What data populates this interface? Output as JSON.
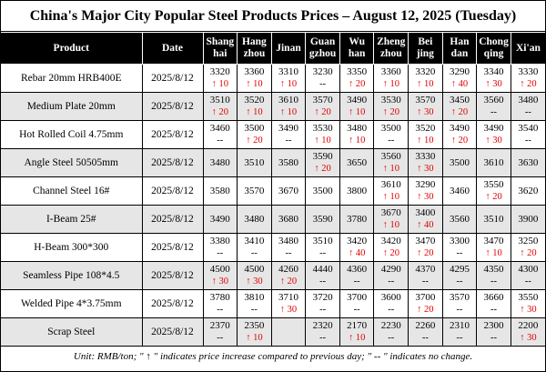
{
  "title": "China's Major City Popular Steel Products Prices – August 12, 2025 (Tuesday)",
  "headers": {
    "product": "Product",
    "date": "Date",
    "cities": [
      [
        "Shang",
        "hai"
      ],
      [
        "Hang",
        "zhou"
      ],
      [
        "Jinan",
        ""
      ],
      [
        "Guan",
        "gzhou"
      ],
      [
        "Wu",
        "han"
      ],
      [
        "Zheng",
        "zhou"
      ],
      [
        "Bei",
        "jing"
      ],
      [
        "Han",
        "dan"
      ],
      [
        "Chong",
        "qing"
      ],
      [
        "Xi'an",
        ""
      ]
    ]
  },
  "rows": [
    {
      "product": "Rebar 20mm HRB400E",
      "date": "2025/8/12",
      "cells": [
        {
          "price": "3320",
          "change": "↑ 10"
        },
        {
          "price": "3360",
          "change": "↑ 10"
        },
        {
          "price": "3310",
          "change": "↑ 10"
        },
        {
          "price": "3230",
          "change": "--"
        },
        {
          "price": "3350",
          "change": "↑ 20"
        },
        {
          "price": "3360",
          "change": "↑ 10"
        },
        {
          "price": "3320",
          "change": "↑ 10"
        },
        {
          "price": "3290",
          "change": "↑ 40"
        },
        {
          "price": "3340",
          "change": "↑ 30"
        },
        {
          "price": "3330",
          "change": "↑ 20"
        }
      ]
    },
    {
      "product": "Medium Plate 20mm",
      "date": "2025/8/12",
      "cells": [
        {
          "price": "3510",
          "change": "↑ 20"
        },
        {
          "price": "3520",
          "change": "↑ 10"
        },
        {
          "price": "3610",
          "change": "↑ 10"
        },
        {
          "price": "3570",
          "change": "↑ 20"
        },
        {
          "price": "3490",
          "change": "↑ 10"
        },
        {
          "price": "3530",
          "change": "↑ 20"
        },
        {
          "price": "3570",
          "change": "↑ 30"
        },
        {
          "price": "3450",
          "change": "↑ 20"
        },
        {
          "price": "3560",
          "change": "--"
        },
        {
          "price": "3480",
          "change": "--"
        }
      ]
    },
    {
      "product": "Hot Rolled Coil 4.75mm",
      "date": "2025/8/12",
      "cells": [
        {
          "price": "3460",
          "change": "--"
        },
        {
          "price": "3500",
          "change": "↑ 20"
        },
        {
          "price": "3490",
          "change": "--"
        },
        {
          "price": "3530",
          "change": "↑ 10"
        },
        {
          "price": "3480",
          "change": "↑ 10"
        },
        {
          "price": "3500",
          "change": "--"
        },
        {
          "price": "3520",
          "change": "↑ 10"
        },
        {
          "price": "3490",
          "change": "↑ 20"
        },
        {
          "price": "3490",
          "change": "↑ 30"
        },
        {
          "price": "3540",
          "change": "--"
        }
      ]
    },
    {
      "product": "Angle Steel 50505mm",
      "date": "2025/8/12",
      "cells": [
        {
          "price": "3480",
          "change": ""
        },
        {
          "price": "3510",
          "change": ""
        },
        {
          "price": "3580",
          "change": ""
        },
        {
          "price": "3590",
          "change": "↑ 20"
        },
        {
          "price": "3650",
          "change": ""
        },
        {
          "price": "3560",
          "change": "↑ 10"
        },
        {
          "price": "3330",
          "change": "↑ 30"
        },
        {
          "price": "3500",
          "change": ""
        },
        {
          "price": "3610",
          "change": ""
        },
        {
          "price": "3630",
          "change": ""
        }
      ]
    },
    {
      "product": "Channel Steel 16#",
      "date": "2025/8/12",
      "cells": [
        {
          "price": "3580",
          "change": ""
        },
        {
          "price": "3570",
          "change": ""
        },
        {
          "price": "3670",
          "change": ""
        },
        {
          "price": "3500",
          "change": ""
        },
        {
          "price": "3800",
          "change": ""
        },
        {
          "price": "3610",
          "change": "↑ 10"
        },
        {
          "price": "3290",
          "change": "↑ 30"
        },
        {
          "price": "3460",
          "change": ""
        },
        {
          "price": "3550",
          "change": "↑ 20"
        },
        {
          "price": "3620",
          "change": ""
        }
      ]
    },
    {
      "product": "I-Beam 25#",
      "date": "2025/8/12",
      "cells": [
        {
          "price": "3490",
          "change": ""
        },
        {
          "price": "3480",
          "change": ""
        },
        {
          "price": "3680",
          "change": ""
        },
        {
          "price": "3590",
          "change": ""
        },
        {
          "price": "3780",
          "change": ""
        },
        {
          "price": "3670",
          "change": "↑ 10"
        },
        {
          "price": "3400",
          "change": "↑ 40"
        },
        {
          "price": "3560",
          "change": ""
        },
        {
          "price": "3510",
          "change": ""
        },
        {
          "price": "3900",
          "change": ""
        }
      ]
    },
    {
      "product": "H-Beam 300*300",
      "date": "2025/8/12",
      "cells": [
        {
          "price": "3380",
          "change": "--"
        },
        {
          "price": "3410",
          "change": "--"
        },
        {
          "price": "3480",
          "change": "--"
        },
        {
          "price": "3510",
          "change": "--"
        },
        {
          "price": "3420",
          "change": "↑ 40"
        },
        {
          "price": "3420",
          "change": "↑ 20"
        },
        {
          "price": "3470",
          "change": "↑ 20"
        },
        {
          "price": "3300",
          "change": "--"
        },
        {
          "price": "3470",
          "change": "↑ 10"
        },
        {
          "price": "3250",
          "change": "↑ 20"
        }
      ]
    },
    {
      "product": "Seamless Pipe 108*4.5",
      "date": "2025/8/12",
      "cells": [
        {
          "price": "4500",
          "change": "↑ 30"
        },
        {
          "price": "4500",
          "change": "↑ 30"
        },
        {
          "price": "4260",
          "change": "↑ 20"
        },
        {
          "price": "4440",
          "change": "--"
        },
        {
          "price": "4360",
          "change": "--"
        },
        {
          "price": "4290",
          "change": "--"
        },
        {
          "price": "4370",
          "change": "--"
        },
        {
          "price": "4295",
          "change": "--"
        },
        {
          "price": "4350",
          "change": "--"
        },
        {
          "price": "4300",
          "change": "--"
        }
      ]
    },
    {
      "product": "Welded Pipe 4*3.75mm",
      "date": "2025/8/12",
      "cells": [
        {
          "price": "3780",
          "change": "--"
        },
        {
          "price": "3810",
          "change": "--"
        },
        {
          "price": "3710",
          "change": "↑ 30"
        },
        {
          "price": "3720",
          "change": "--"
        },
        {
          "price": "3700",
          "change": "--"
        },
        {
          "price": "3600",
          "change": "--"
        },
        {
          "price": "3700",
          "change": "↑ 20"
        },
        {
          "price": "3570",
          "change": "--"
        },
        {
          "price": "3660",
          "change": "--"
        },
        {
          "price": "3550",
          "change": "↑ 30"
        }
      ]
    },
    {
      "product": "Scrap Steel",
      "date": "2025/8/12",
      "cells": [
        {
          "price": "2370",
          "change": "--"
        },
        {
          "price": "2350",
          "change": "↑ 10"
        },
        {
          "price": "",
          "change": ""
        },
        {
          "price": "2320",
          "change": "--"
        },
        {
          "price": "2170",
          "change": "↑ 10"
        },
        {
          "price": "2230",
          "change": "--"
        },
        {
          "price": "2260",
          "change": "--"
        },
        {
          "price": "2310",
          "change": "--"
        },
        {
          "price": "2300",
          "change": "--"
        },
        {
          "price": "2200",
          "change": "↑ 30"
        }
      ]
    }
  ],
  "note": "Unit: RMB/ton; \"  ↑ \" indicates price increase compared to previous day; \" -- \" indicates no change."
}
